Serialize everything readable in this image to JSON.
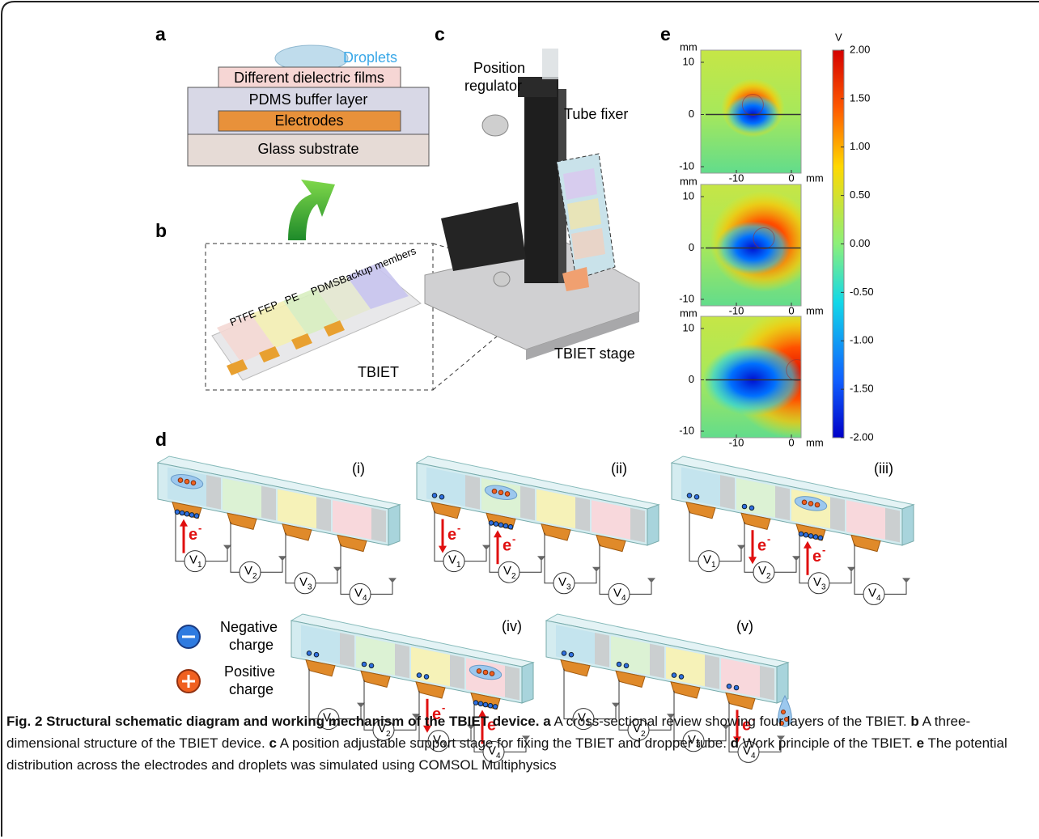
{
  "panel_labels": {
    "a": "a",
    "b": "b",
    "c": "c",
    "d": "d",
    "e": "e"
  },
  "panel_a": {
    "droplet_label": "Droplets",
    "layers": [
      "Different dielectric films",
      "PDMS buffer layer",
      "Electrodes",
      "Glass substrate"
    ]
  },
  "panel_b": {
    "films": [
      "PTFE",
      "FEP",
      "PE",
      "PDMS",
      "Backup members"
    ],
    "device_label": "TBIET"
  },
  "panel_c": {
    "regulator": [
      "Position",
      "regulator"
    ],
    "tube_fixer": "Tube fixer",
    "stage": "TBIET stage"
  },
  "panel_d": {
    "stages": [
      "(i)",
      "(ii)",
      "(iii)",
      "(iv)",
      "(v)"
    ],
    "voltmeter": {
      "symbol": "V",
      "indices": [
        "1",
        "2",
        "3",
        "4"
      ]
    },
    "electron": {
      "symbol": "e",
      "charge": "-"
    },
    "legend": [
      [
        "Negative",
        "charge"
      ],
      [
        "Positive",
        "charge"
      ]
    ]
  },
  "panel_e": {
    "unit": "V",
    "axis_unit": "mm",
    "yticks": [
      10,
      0,
      -10
    ],
    "xticks": [
      -10,
      0
    ],
    "colorbar_ticks": [
      {
        "value": 2,
        "label": "2.00"
      },
      {
        "value": 1.5,
        "label": "1.50"
      },
      {
        "value": 1,
        "label": "1.00"
      },
      {
        "value": 0.5,
        "label": "0.50"
      },
      {
        "value": 0,
        "label": "0.00"
      },
      {
        "value": -0.5,
        "label": "-0.50"
      },
      {
        "value": -1,
        "label": "-1.00"
      },
      {
        "value": -1.5,
        "label": "-1.50"
      },
      {
        "value": -2,
        "label": "-2.00"
      }
    ]
  },
  "caption": {
    "title": "Fig. 2 Structural schematic diagram and working mechanism of the TBIET device.",
    "parts": [
      {
        "label": "a",
        "text": "A cross-sectional review showing four layers of the TBIET."
      },
      {
        "label": "b",
        "text": "A three-dimensional structure of the TBIET device."
      },
      {
        "label": "c",
        "text": "A position adjustable support stage for fixing the TBIET and dropper tube."
      },
      {
        "label": "d",
        "text": "Work principle of the TBIET."
      },
      {
        "label": "e",
        "text": "The potential distribution across the electrodes and droplets was simulated using COMSOL Multiphysics"
      }
    ]
  }
}
